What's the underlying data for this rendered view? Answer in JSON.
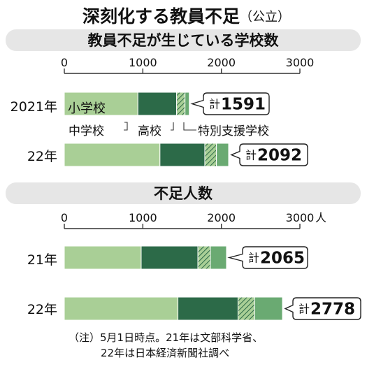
{
  "title": "深刻化する教員不足",
  "title_suffix": "（公立）",
  "colors": {
    "elementary": "#a9cf96",
    "junior_high": "#2c6a48",
    "high": "#8fbd77",
    "special": "#6aaa72",
    "panel_bg": "#e6e6e6"
  },
  "legend": {
    "elementary": "小学校",
    "junior_high": "中学校",
    "high": "高校",
    "special": "特別支援学校"
  },
  "note_lines": [
    "（注）5月1日時点。21年は文部科学省、",
    "22年は日本経済新聞社調べ"
  ],
  "chart_data": [
    {
      "type": "bar",
      "stacked": true,
      "orientation": "horizontal",
      "title": "教員不足が生じている学校数",
      "categories": [
        "2021年",
        "22年"
      ],
      "series": [
        {
          "name": "小学校",
          "values": [
            937,
            1218
          ]
        },
        {
          "name": "中学校",
          "values": [
            493,
            571
          ]
        },
        {
          "name": "高校",
          "values": [
            107,
            148
          ]
        },
        {
          "name": "特別支援学校",
          "values": [
            54,
            155
          ]
        }
      ],
      "totals": [
        "1591",
        "2092"
      ],
      "total_prefix": "計",
      "xlim": [
        0,
        3000
      ],
      "xticks": [
        "0",
        "1000",
        "2000",
        "3000"
      ],
      "xunit": ""
    },
    {
      "type": "bar",
      "stacked": true,
      "orientation": "horizontal",
      "title": "不足人数",
      "categories": [
        "21年",
        "22年"
      ],
      "series": [
        {
          "name": "小学校",
          "values": [
            979,
            1447
          ]
        },
        {
          "name": "中学校",
          "values": [
            722,
            765
          ]
        },
        {
          "name": "高校",
          "values": [
            159,
            211
          ]
        },
        {
          "name": "特別支援学校",
          "values": [
            205,
            355
          ]
        }
      ],
      "totals": [
        "2065",
        "2778"
      ],
      "total_prefix": "計",
      "xlim": [
        0,
        3000
      ],
      "xticks": [
        "0",
        "1000",
        "2000",
        "3000"
      ],
      "xunit": "人"
    }
  ]
}
